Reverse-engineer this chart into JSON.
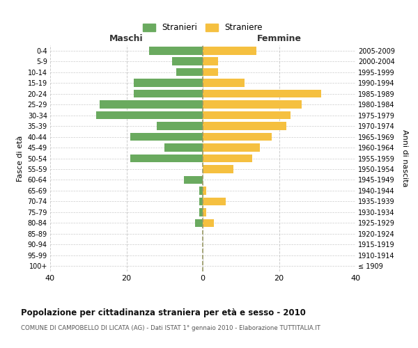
{
  "age_groups": [
    "100+",
    "95-99",
    "90-94",
    "85-89",
    "80-84",
    "75-79",
    "70-74",
    "65-69",
    "60-64",
    "55-59",
    "50-54",
    "45-49",
    "40-44",
    "35-39",
    "30-34",
    "25-29",
    "20-24",
    "15-19",
    "10-14",
    "5-9",
    "0-4"
  ],
  "birth_years": [
    "≤ 1909",
    "1910-1914",
    "1915-1919",
    "1920-1924",
    "1925-1929",
    "1930-1934",
    "1935-1939",
    "1940-1944",
    "1945-1949",
    "1950-1954",
    "1955-1959",
    "1960-1964",
    "1965-1969",
    "1970-1974",
    "1975-1979",
    "1980-1984",
    "1985-1989",
    "1990-1994",
    "1995-1999",
    "2000-2004",
    "2005-2009"
  ],
  "maschi": [
    0,
    0,
    0,
    0,
    2,
    1,
    1,
    1,
    5,
    0,
    19,
    10,
    19,
    12,
    28,
    27,
    18,
    18,
    7,
    8,
    14
  ],
  "femmine": [
    0,
    0,
    0,
    0,
    3,
    1,
    6,
    1,
    0,
    8,
    13,
    15,
    18,
    22,
    23,
    26,
    31,
    11,
    4,
    4,
    14
  ],
  "maschi_color": "#6aaa5f",
  "femmine_color": "#f5c040",
  "background_color": "#ffffff",
  "grid_color": "#cccccc",
  "title": "Popolazione per cittadinanza straniera per età e sesso - 2010",
  "subtitle": "COMUNE DI CAMPOBELLO DI LICATA (AG) - Dati ISTAT 1° gennaio 2010 - Elaborazione TUTTITALIA.IT",
  "xlabel_left": "Maschi",
  "xlabel_right": "Femmine",
  "ylabel_left": "Fasce di età",
  "ylabel_right": "Anni di nascita",
  "legend_stranieri": "Stranieri",
  "legend_straniere": "Straniere",
  "xlim": 40
}
